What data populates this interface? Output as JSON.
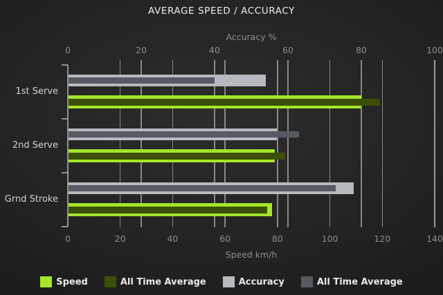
{
  "title": "AVERAGE SPEED / ACCURACY",
  "chart_data": {
    "type": "bar",
    "orientation": "horizontal",
    "categories": [
      "1st Serve",
      "2nd Serve",
      "Grnd Stroke"
    ],
    "axes": {
      "top": {
        "label": "Accuracy %",
        "min": 0,
        "max": 100,
        "ticks": [
          0,
          20,
          40,
          60,
          80,
          100
        ]
      },
      "bottom": {
        "label": "Speed km/h",
        "min": 0,
        "max": 140,
        "ticks": [
          0,
          20,
          40,
          60,
          80,
          100,
          120,
          140
        ]
      }
    },
    "series": [
      {
        "name": "Speed",
        "axis": "bottom",
        "color": "#a5e52b",
        "values": [
          112,
          79,
          78
        ]
      },
      {
        "name": "All Time Average",
        "axis": "bottom",
        "color": "#3c4f08",
        "values": [
          119,
          83,
          76
        ]
      },
      {
        "name": "Accuracy",
        "axis": "top",
        "color": "#b6babe",
        "values": [
          54,
          57,
          78
        ]
      },
      {
        "name": "All Time Average",
        "axis": "top",
        "color": "#565b62",
        "values": [
          40,
          63,
          73
        ]
      }
    ],
    "bar_groups": [
      {
        "outer_series": 2,
        "inner_series": 3
      },
      {
        "outer_series": 0,
        "inner_series": 1
      }
    ],
    "grid": true,
    "legend_position": "bottom",
    "legend": [
      "Speed",
      "All Time Average",
      "Accuracy",
      "All Time Average"
    ]
  },
  "colors": {
    "background_center": "#2c2c2c",
    "background_edge": "#101010",
    "grid": "#9f9f9f",
    "title_text": "#ececec",
    "axis_text": "#8d8d8d",
    "category_text": "#d2d2d2",
    "legend_text": "#e8e8e8"
  }
}
